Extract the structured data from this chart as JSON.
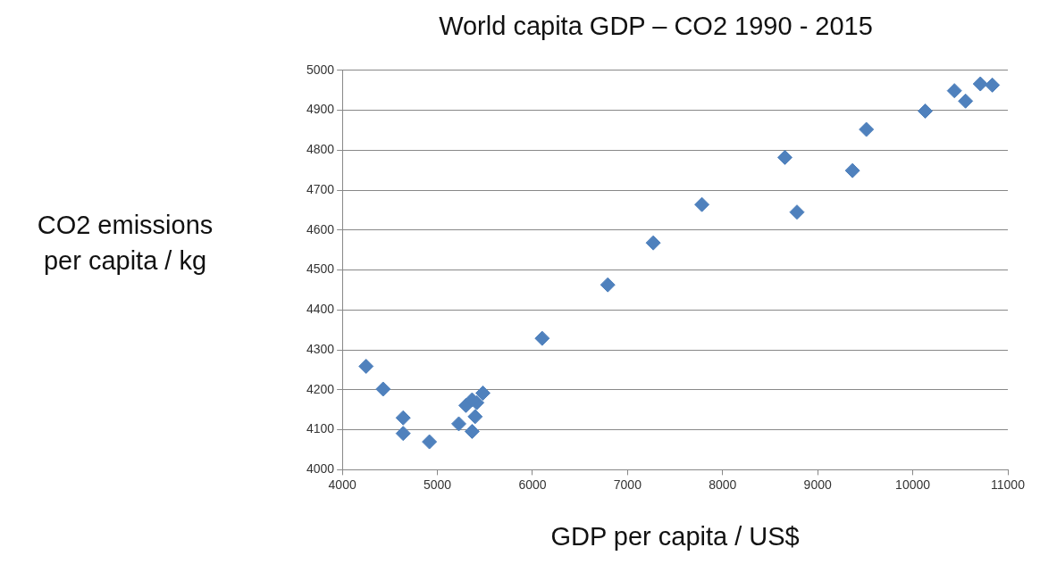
{
  "chart_data": {
    "type": "scatter",
    "title": "World capita GDP – CO2 1990 - 2015",
    "xlabel": "GDP per capita / US$",
    "ylabel": "CO2 emissions per capita / kg",
    "x": [
      10837,
      10711,
      10438,
      10555,
      10131,
      9512,
      9366,
      8655,
      8782,
      7782,
      7270,
      6792,
      6102,
      4250,
      4429,
      4640,
      4640,
      4916,
      5225,
      5365,
      5300,
      5381,
      5414,
      5479,
      5397,
      5365
    ],
    "values": [
      4963,
      4966,
      4949,
      4923,
      4898,
      4852,
      4749,
      4782,
      4645,
      4664,
      4568,
      4463,
      4329,
      4259,
      4202,
      4130,
      4091,
      4070,
      4115,
      4096,
      4161,
      null,
      4168,
      4192,
      4133,
      4175
    ],
    "color": "#4f81bd",
    "marker": "diamond",
    "xlim": [
      4000,
      11000
    ],
    "xticks": [
      4000,
      5000,
      6000,
      7000,
      8000,
      9000,
      10000,
      11000
    ],
    "ylim": [
      4000,
      5000
    ],
    "yticks": [
      4000,
      4100,
      4200,
      4300,
      4400,
      4500,
      4600,
      4700,
      4800,
      4900,
      5000
    ],
    "grid": "y",
    "legend": false
  }
}
